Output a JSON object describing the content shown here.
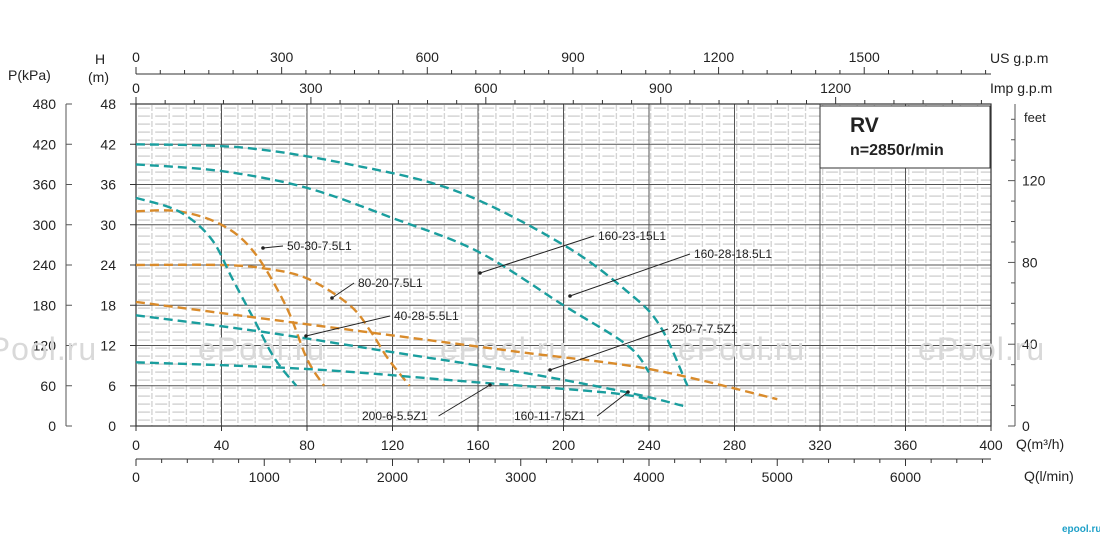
{
  "chart_data": {
    "type": "line",
    "title": "RV",
    "subtitle": "n=2850r/min",
    "x_axes": {
      "q_m3h": {
        "unit": "Q(m³/h)",
        "ticks": [
          "0",
          "40",
          "80",
          "120",
          "160",
          "200",
          "240",
          "280",
          "320",
          "360",
          "400"
        ],
        "range": [
          0,
          400
        ]
      },
      "q_lmin": {
        "unit": "Q(l/min)",
        "ticks": [
          "0",
          "1000",
          "2000",
          "3000",
          "4000",
          "5000",
          "6000"
        ]
      },
      "us_gpm": {
        "unit": "US g.p.m",
        "ticks": [
          "0",
          "300",
          "600",
          "900",
          "1200",
          "1500"
        ]
      },
      "imp_gpm": {
        "unit": "Imp g.p.m",
        "ticks": [
          "0",
          "300",
          "600",
          "900",
          "1200"
        ]
      }
    },
    "y_axes": {
      "h_m": {
        "unit_top": "H",
        "unit_bottom": "(m)",
        "ticks": [
          "0",
          "6",
          "12",
          "18",
          "24",
          "30",
          "36",
          "42",
          "48"
        ],
        "range": [
          0,
          48
        ]
      },
      "p_kpa": {
        "unit": "P(kPa)",
        "ticks": [
          "0",
          "60",
          "120",
          "180",
          "240",
          "300",
          "360",
          "420",
          "480"
        ]
      },
      "feet": {
        "unit": "feet",
        "ticks": [
          "0",
          "40",
          "80",
          "120"
        ]
      }
    },
    "series": [
      {
        "name": "50-30-7.5L1",
        "color": "#d98b2b",
        "x": [
          0,
          20,
          40,
          55,
          70,
          80,
          88
        ],
        "y": [
          32,
          32,
          30,
          26,
          18,
          10,
          6
        ]
      },
      {
        "name": "80-20-7.5L1",
        "color": "#d98b2b",
        "x": [
          0,
          40,
          60,
          80,
          100,
          110,
          118,
          128
        ],
        "y": [
          24,
          24,
          23.5,
          22,
          18,
          14,
          10,
          6
        ]
      },
      {
        "name": "40-28-5.5L1",
        "color": "#1a9e9e",
        "x": [
          0,
          20,
          35,
          45,
          55,
          65,
          75
        ],
        "y": [
          34,
          32,
          28,
          22,
          16,
          10,
          6
        ]
      },
      {
        "name": "160-23-15L1",
        "color": "#1a9e9e",
        "x": [
          0,
          40,
          80,
          120,
          160,
          200,
          230,
          240
        ],
        "y": [
          39,
          38,
          35.5,
          31,
          26,
          18,
          12,
          8
        ]
      },
      {
        "name": "160-28-18.5L1",
        "color": "#1a9e9e",
        "x": [
          0,
          50,
          100,
          150,
          200,
          230,
          245,
          258
        ],
        "y": [
          42,
          41.5,
          39,
          35,
          27,
          20,
          15,
          6
        ]
      },
      {
        "name": "250-7-7.5Z1",
        "color": "#d98b2b",
        "x": [
          0,
          60,
          120,
          180,
          240,
          300
        ],
        "y": [
          18.5,
          16,
          13.5,
          11,
          8.5,
          4
        ]
      },
      {
        "name": "160-11-7.5Z1",
        "color": "#1a9e9e",
        "x": [
          0,
          60,
          120,
          180,
          230,
          256
        ],
        "y": [
          16.5,
          14,
          11,
          8,
          5,
          3
        ]
      },
      {
        "name": "200-6-5.5Z1",
        "color": "#1a9e9e",
        "x": [
          0,
          80,
          160,
          220,
          240
        ],
        "y": [
          9.5,
          8.5,
          6.5,
          5,
          4
        ]
      }
    ],
    "annotations": [
      "50-30-7.5L1",
      "80-20-7.5L1",
      "40-28-5.5L1",
      "160-23-15L1",
      "160-28-18.5L1",
      "250-7-7.5Z1",
      "160-11-7.5Z1",
      "200-6-5.5Z1"
    ],
    "grid": true,
    "watermark": "ePool.ru",
    "logo": "epool.ru"
  }
}
